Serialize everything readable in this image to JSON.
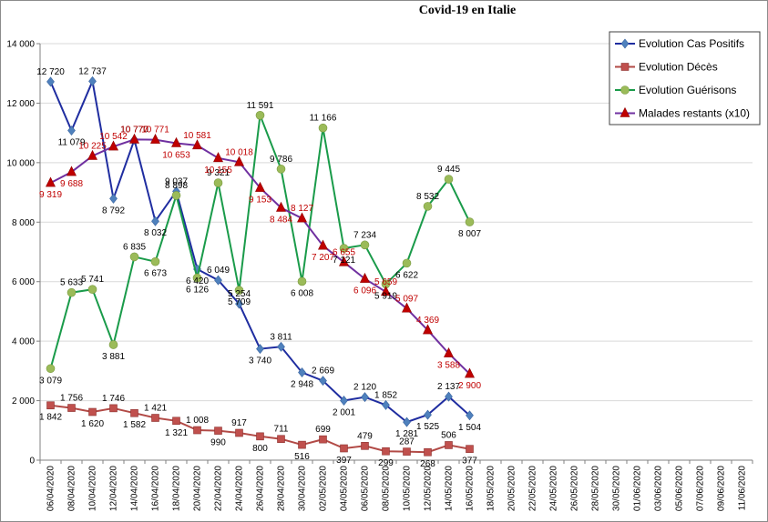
{
  "chart_data": {
    "type": "line",
    "title": "Covid-19 en Italie",
    "xlabel": "",
    "ylabel": "",
    "ylim": [
      0,
      14000
    ],
    "yticks": [
      0,
      2000,
      4000,
      6000,
      8000,
      10000,
      12000,
      14000
    ],
    "ytick_labels": [
      "0",
      "2 000",
      "4 000",
      "6 000",
      "8 000",
      "10 000",
      "12 000",
      "14 000"
    ],
    "grid": "horizontal",
    "legend_position": "top-right",
    "x_labels": [
      "06/04/2020",
      "08/04/2020",
      "10/04/2020",
      "12/04/2020",
      "14/04/2020",
      "16/04/2020",
      "18/04/2020",
      "20/04/2020",
      "22/04/2020",
      "24/04/2020",
      "26/04/2020",
      "28/04/2020",
      "30/04/2020",
      "02/05/2020",
      "04/05/2020",
      "06/05/2020",
      "08/05/2020",
      "10/05/2020",
      "12/05/2020",
      "14/05/2020",
      "16/05/2020",
      "18/05/2020",
      "20/05/2020",
      "22/05/2020",
      "24/05/2020",
      "26/05/2020",
      "28/05/2020",
      "30/05/2020",
      "01/06/2020",
      "03/06/2020",
      "05/06/2020",
      "07/06/2020",
      "09/06/2020",
      "11/06/2020"
    ],
    "series": [
      {
        "name": "Evolution Cas Positifs",
        "color": "#1F2DA0",
        "marker": "diamond",
        "marker_color": "#4F81BD",
        "label_color": "#000000",
        "points": [
          {
            "x": "06/04/2020",
            "y": 12720,
            "label": "12 720"
          },
          {
            "x": "08/04/2020",
            "y": 11079,
            "label": "11 079"
          },
          {
            "x": "10/04/2020",
            "y": 12737,
            "label": "12 737"
          },
          {
            "x": "12/04/2020",
            "y": 8792,
            "label": "8 792"
          },
          {
            "x": "14/04/2020",
            "y": 10770,
            "label": "10 770"
          },
          {
            "x": "16/04/2020",
            "y": 8032,
            "label": "8 032"
          },
          {
            "x": "18/04/2020",
            "y": 9037,
            "label": "9 037"
          },
          {
            "x": "20/04/2020",
            "y": 6420,
            "label": "6 420"
          },
          {
            "x": "22/04/2020",
            "y": 6049,
            "label": "6 049"
          },
          {
            "x": "24/04/2020",
            "y": 5254,
            "label": "5 254"
          },
          {
            "x": "26/04/2020",
            "y": 3740,
            "label": "3 740"
          },
          {
            "x": "28/04/2020",
            "y": 3811,
            "label": "3 811"
          },
          {
            "x": "30/04/2020",
            "y": 2948,
            "label": "2 948"
          },
          {
            "x": "02/05/2020",
            "y": 2669,
            "label": "2 669"
          },
          {
            "x": "04/05/2020",
            "y": 2001,
            "label": "2 001"
          },
          {
            "x": "06/05/2020",
            "y": 2120,
            "label": "2 120"
          },
          {
            "x": "08/05/2020",
            "y": 1852,
            "label": "1 852"
          },
          {
            "x": "10/05/2020",
            "y": 1281,
            "label": "1 281"
          },
          {
            "x": "12/05/2020",
            "y": 1525,
            "label": "1 525"
          },
          {
            "x": "14/05/2020",
            "y": 2137,
            "label": "2 137"
          },
          {
            "x": "16/05/2020",
            "y": 1504,
            "label": "1 504"
          }
        ]
      },
      {
        "name": "Evolution Décès",
        "color": "#B24A46",
        "marker": "square",
        "marker_color": "#C0504D",
        "label_color": "#000000",
        "points": [
          {
            "x": "06/04/2020",
            "y": 1842,
            "label": "1 842"
          },
          {
            "x": "08/04/2020",
            "y": 1756,
            "label": "1 756"
          },
          {
            "x": "10/04/2020",
            "y": 1620,
            "label": "1 620"
          },
          {
            "x": "12/04/2020",
            "y": 1746,
            "label": "1 746"
          },
          {
            "x": "14/04/2020",
            "y": 1582,
            "label": "1 582"
          },
          {
            "x": "16/04/2020",
            "y": 1421,
            "label": "1 421"
          },
          {
            "x": "18/04/2020",
            "y": 1321,
            "label": "1 321"
          },
          {
            "x": "20/04/2020",
            "y": 1008,
            "label": "1 008"
          },
          {
            "x": "22/04/2020",
            "y": 990,
            "label": "990"
          },
          {
            "x": "24/04/2020",
            "y": 917,
            "label": "917"
          },
          {
            "x": "26/04/2020",
            "y": 800,
            "label": "800"
          },
          {
            "x": "28/04/2020",
            "y": 711,
            "label": "711"
          },
          {
            "x": "30/04/2020",
            "y": 516,
            "label": "516"
          },
          {
            "x": "02/05/2020",
            "y": 699,
            "label": "699"
          },
          {
            "x": "04/05/2020",
            "y": 397,
            "label": "397"
          },
          {
            "x": "06/05/2020",
            "y": 479,
            "label": "479"
          },
          {
            "x": "08/05/2020",
            "y": 299,
            "label": "299"
          },
          {
            "x": "10/05/2020",
            "y": 287,
            "label": "287"
          },
          {
            "x": "12/05/2020",
            "y": 268,
            "label": "268"
          },
          {
            "x": "14/05/2020",
            "y": 506,
            "label": "506"
          },
          {
            "x": "16/05/2020",
            "y": 377,
            "label": "377"
          }
        ]
      },
      {
        "name": "Evolution Guérisons",
        "color": "#1A9B4A",
        "marker": "circle",
        "marker_color": "#9BBB59",
        "label_color": "#000000",
        "points": [
          {
            "x": "06/04/2020",
            "y": 3079,
            "label": "3 079"
          },
          {
            "x": "08/04/2020",
            "y": 5633,
            "label": "5 633"
          },
          {
            "x": "10/04/2020",
            "y": 5741,
            "label": "5 741"
          },
          {
            "x": "12/04/2020",
            "y": 3881,
            "label": "3 881"
          },
          {
            "x": "14/04/2020",
            "y": 6835,
            "label": "6 835"
          },
          {
            "x": "16/04/2020",
            "y": 6673,
            "label": "6 673"
          },
          {
            "x": "18/04/2020",
            "y": 8898,
            "label": "8 898"
          },
          {
            "x": "20/04/2020",
            "y": 6126,
            "label": "6 126"
          },
          {
            "x": "22/04/2020",
            "y": 9321,
            "label": "9 321"
          },
          {
            "x": "24/04/2020",
            "y": 5709,
            "label": "5 709"
          },
          {
            "x": "26/04/2020",
            "y": 11591,
            "label": "11 591"
          },
          {
            "x": "28/04/2020",
            "y": 9786,
            "label": "9 786"
          },
          {
            "x": "30/04/2020",
            "y": 6008,
            "label": "6 008"
          },
          {
            "x": "02/05/2020",
            "y": 11166,
            "label": "11 166"
          },
          {
            "x": "04/05/2020",
            "y": 7121,
            "label": "7 121"
          },
          {
            "x": "06/05/2020",
            "y": 7234,
            "label": "7 234"
          },
          {
            "x": "08/05/2020",
            "y": 5919,
            "label": "5 919"
          },
          {
            "x": "10/05/2020",
            "y": 6622,
            "label": "6 622"
          },
          {
            "x": "12/05/2020",
            "y": 8532,
            "label": "8 532"
          },
          {
            "x": "14/05/2020",
            "y": 9445,
            "label": "9 445"
          },
          {
            "x": "16/05/2020",
            "y": 8007,
            "label": "8 007"
          }
        ]
      },
      {
        "name": "Malades restants (x10)",
        "color": "#7030A0",
        "marker": "triangle",
        "marker_color": "#C00000",
        "label_color": "#C00000",
        "points": [
          {
            "x": "06/04/2020",
            "y": 9319,
            "label": "9 319"
          },
          {
            "x": "08/04/2020",
            "y": 9688,
            "label": "9 688"
          },
          {
            "x": "10/04/2020",
            "y": 10225,
            "label": "10 225"
          },
          {
            "x": "12/04/2020",
            "y": 10542,
            "label": "10 542"
          },
          {
            "x": "14/04/2020",
            "y": 10777,
            "label": "10 777"
          },
          {
            "x": "16/04/2020",
            "y": 10771,
            "label": "10 771"
          },
          {
            "x": "18/04/2020",
            "y": 10653,
            "label": "10 653"
          },
          {
            "x": "20/04/2020",
            "y": 10581,
            "label": "10 581"
          },
          {
            "x": "22/04/2020",
            "y": 10155,
            "label": "10 155"
          },
          {
            "x": "24/04/2020",
            "y": 10018,
            "label": "10 018"
          },
          {
            "x": "26/04/2020",
            "y": 9153,
            "label": "9 153"
          },
          {
            "x": "28/04/2020",
            "y": 8484,
            "label": "8 484"
          },
          {
            "x": "30/04/2020",
            "y": 8127,
            "label": "8 127"
          },
          {
            "x": "02/05/2020",
            "y": 7207,
            "label": "7 207"
          },
          {
            "x": "04/05/2020",
            "y": 6655,
            "label": "6 655"
          },
          {
            "x": "06/05/2020",
            "y": 6096,
            "label": "6 096"
          },
          {
            "x": "08/05/2020",
            "y": 5659,
            "label": "5 659"
          },
          {
            "x": "10/05/2020",
            "y": 5097,
            "label": "5 097"
          },
          {
            "x": "12/05/2020",
            "y": 4369,
            "label": "4 369"
          },
          {
            "x": "14/05/2020",
            "y": 3588,
            "label": "3 588"
          },
          {
            "x": "16/05/2020",
            "y": 2900,
            "label": "2 900"
          }
        ]
      }
    ]
  }
}
